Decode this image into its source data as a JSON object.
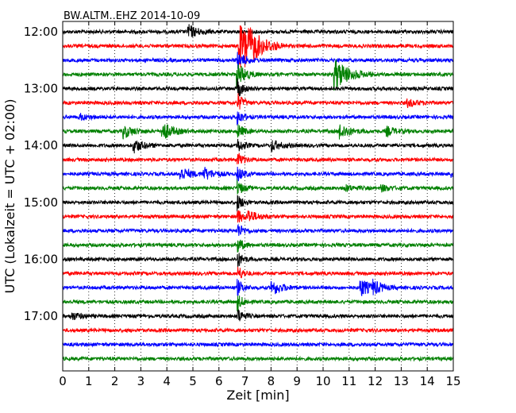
{
  "chart_data": {
    "type": "line",
    "title": "BW.ALTM..EHZ 2014-10-09",
    "xlabel": "Zeit  [min]",
    "ylabel": "UTC (Lokalzeit = UTC + 02:00)",
    "xlim": [
      0,
      15
    ],
    "x_ticks": [
      0,
      1,
      2,
      3,
      4,
      5,
      6,
      7,
      8,
      9,
      10,
      11,
      12,
      13,
      14,
      15
    ],
    "x_tick_labels": [
      "0",
      "1",
      "2",
      "3",
      "4",
      "5",
      "6",
      "7",
      "8",
      "9",
      "10",
      "11",
      "12",
      "13",
      "14",
      "15"
    ],
    "y_ticks": [
      "12:00",
      "13:00",
      "14:00",
      "15:00",
      "16:00",
      "17:00"
    ],
    "grid": "vertical dotted",
    "trace_start": "12:00",
    "trace_interval_min": 15,
    "trace_colors": [
      "#000000",
      "#ff0000",
      "#0000ff",
      "#008000"
    ],
    "traces": [
      {
        "start": "12:00",
        "color": "#000000",
        "events": [
          {
            "t": 4.8,
            "amp": 9
          }
        ]
      },
      {
        "start": "12:15",
        "color": "#ff0000",
        "events": [
          {
            "t": 6.75,
            "amp": 30,
            "dur": 0.5
          },
          {
            "t": 7.0,
            "amp": 14,
            "dur": 0.6
          }
        ]
      },
      {
        "start": "12:30",
        "color": "#0000ff",
        "events": [
          {
            "t": 6.7,
            "amp": 10,
            "dur": 0.3
          }
        ]
      },
      {
        "start": "12:45",
        "color": "#008000",
        "events": [
          {
            "t": 6.65,
            "amp": 18,
            "dur": 0.3
          },
          {
            "t": 10.4,
            "amp": 22,
            "dur": 0.5
          }
        ]
      },
      {
        "start": "13:00",
        "color": "#000000",
        "events": [
          {
            "t": 6.7,
            "amp": 12,
            "dur": 0.2
          }
        ]
      },
      {
        "start": "13:15",
        "color": "#ff0000",
        "events": [
          {
            "t": 6.7,
            "amp": 12,
            "dur": 0.2
          },
          {
            "t": 13.2,
            "amp": 5
          }
        ]
      },
      {
        "start": "13:30",
        "color": "#0000ff",
        "events": [
          {
            "t": 6.7,
            "amp": 10,
            "dur": 0.2
          },
          {
            "t": 0.6,
            "amp": 4
          }
        ]
      },
      {
        "start": "13:45",
        "color": "#008000",
        "events": [
          {
            "t": 2.3,
            "amp": 9
          },
          {
            "t": 3.8,
            "amp": 13
          },
          {
            "t": 6.7,
            "amp": 10,
            "dur": 0.2
          },
          {
            "t": 10.6,
            "amp": 11
          },
          {
            "t": 12.4,
            "amp": 6
          }
        ]
      },
      {
        "start": "14:00",
        "color": "#000000",
        "events": [
          {
            "t": 2.7,
            "amp": 9
          },
          {
            "t": 6.7,
            "amp": 10,
            "dur": 0.2
          },
          {
            "t": 8.0,
            "amp": 7
          }
        ]
      },
      {
        "start": "14:15",
        "color": "#ff0000",
        "events": [
          {
            "t": 6.7,
            "amp": 10,
            "dur": 0.2
          }
        ]
      },
      {
        "start": "14:30",
        "color": "#0000ff",
        "events": [
          {
            "t": 4.5,
            "amp": 9
          },
          {
            "t": 5.4,
            "amp": 8
          },
          {
            "t": 6.7,
            "amp": 10,
            "dur": 0.2
          },
          {
            "t": 14.9,
            "amp": 5
          }
        ]
      },
      {
        "start": "14:45",
        "color": "#008000",
        "events": [
          {
            "t": 6.7,
            "amp": 10,
            "dur": 0.2
          },
          {
            "t": 10.8,
            "amp": 4
          },
          {
            "t": 12.2,
            "amp": 4
          }
        ]
      },
      {
        "start": "15:00",
        "color": "#000000",
        "events": [
          {
            "t": 6.7,
            "amp": 10,
            "dur": 0.2
          }
        ]
      },
      {
        "start": "15:15",
        "color": "#ff0000",
        "events": [
          {
            "t": 6.7,
            "amp": 10,
            "dur": 0.2
          },
          {
            "t": 7.1,
            "amp": 8
          }
        ]
      },
      {
        "start": "15:30",
        "color": "#0000ff",
        "events": [
          {
            "t": 6.7,
            "amp": 10,
            "dur": 0.2
          }
        ]
      },
      {
        "start": "15:45",
        "color": "#008000",
        "events": [
          {
            "t": 6.7,
            "amp": 10,
            "dur": 0.2
          }
        ]
      },
      {
        "start": "16:00",
        "color": "#000000",
        "events": [
          {
            "t": 6.7,
            "amp": 10,
            "dur": 0.2
          }
        ]
      },
      {
        "start": "16:15",
        "color": "#ff0000",
        "events": [
          {
            "t": 6.7,
            "amp": 10,
            "dur": 0.2
          }
        ]
      },
      {
        "start": "16:30",
        "color": "#0000ff",
        "events": [
          {
            "t": 6.7,
            "amp": 10,
            "dur": 0.2
          },
          {
            "t": 8.0,
            "amp": 10
          },
          {
            "t": 11.4,
            "amp": 13
          },
          {
            "t": 11.9,
            "amp": 7
          }
        ]
      },
      {
        "start": "16:45",
        "color": "#008000",
        "events": [
          {
            "t": 6.7,
            "amp": 10,
            "dur": 0.2
          }
        ]
      },
      {
        "start": "17:00",
        "color": "#000000",
        "events": [
          {
            "t": 6.7,
            "amp": 10,
            "dur": 0.2
          },
          {
            "t": 0.3,
            "amp": 5
          }
        ]
      },
      {
        "start": "17:15",
        "color": "#ff0000",
        "events": []
      },
      {
        "start": "17:30",
        "color": "#0000ff",
        "events": []
      },
      {
        "start": "17:45",
        "color": "#008000",
        "events": []
      }
    ]
  }
}
